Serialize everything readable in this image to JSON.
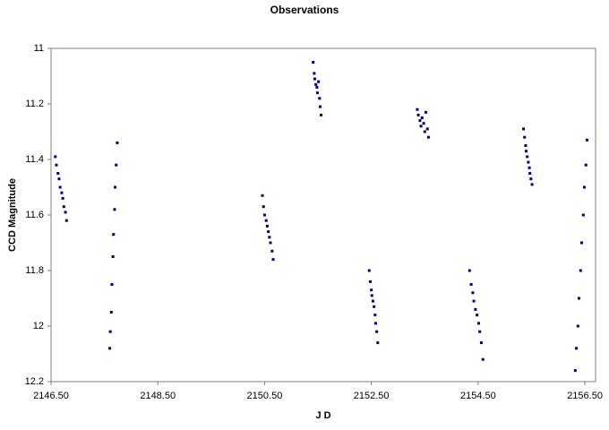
{
  "chart_data": {
    "type": "scatter",
    "title": "Observations",
    "x_label": "J D",
    "y_label": "CCD Magnitude",
    "color": "#000080",
    "y_inverted": true,
    "grid": false,
    "xlim": [
      2146.5,
      2156.7
    ],
    "ylim": [
      11,
      12.2
    ],
    "xticks": [
      {
        "value": 2146.5,
        "label": "2146.50"
      },
      {
        "value": 2148.5,
        "label": "2148.50"
      },
      {
        "value": 2150.5,
        "label": "2150.50"
      },
      {
        "value": 2152.5,
        "label": "2152.50"
      },
      {
        "value": 2154.5,
        "label": "2154.50"
      },
      {
        "value": 2156.5,
        "label": "2156.50"
      }
    ],
    "yticks": [
      11,
      11.2,
      11.4,
      11.6,
      11.8,
      12,
      12.2
    ],
    "x": [
      2146.58,
      2146.6,
      2146.63,
      2146.65,
      2146.67,
      2146.7,
      2146.72,
      2146.74,
      2146.77,
      2146.79,
      2147.6,
      2147.61,
      2147.63,
      2147.64,
      2147.66,
      2147.67,
      2147.69,
      2147.7,
      2147.72,
      2147.74,
      2150.46,
      2150.48,
      2150.5,
      2150.53,
      2150.55,
      2150.57,
      2150.59,
      2150.61,
      2150.64,
      2150.66,
      2151.41,
      2151.43,
      2151.44,
      2151.46,
      2151.48,
      2151.49,
      2151.51,
      2151.53,
      2151.54,
      2151.56,
      2152.46,
      2152.48,
      2152.5,
      2152.51,
      2152.53,
      2152.55,
      2152.57,
      2152.58,
      2152.6,
      2152.62,
      2153.36,
      2153.38,
      2153.41,
      2153.43,
      2153.45,
      2153.48,
      2153.5,
      2153.52,
      2153.55,
      2153.57,
      2154.34,
      2154.37,
      2154.4,
      2154.42,
      2154.45,
      2154.48,
      2154.51,
      2154.53,
      2154.56,
      2154.59,
      2155.35,
      2155.37,
      2155.39,
      2155.4,
      2155.42,
      2155.44,
      2155.46,
      2155.47,
      2155.49,
      2155.51,
      2156.32,
      2156.34,
      2156.37,
      2156.39,
      2156.42,
      2156.44,
      2156.47,
      2156.49,
      2156.52,
      2156.54
    ],
    "values": [
      11.39,
      11.42,
      11.45,
      11.47,
      11.5,
      11.52,
      11.54,
      11.57,
      11.59,
      11.62,
      12.08,
      12.02,
      11.95,
      11.85,
      11.75,
      11.67,
      11.58,
      11.5,
      11.42,
      11.34,
      11.53,
      11.57,
      11.6,
      11.62,
      11.64,
      11.66,
      11.68,
      11.7,
      11.73,
      11.76,
      11.05,
      11.09,
      11.11,
      11.13,
      11.14,
      11.16,
      11.12,
      11.18,
      11.21,
      11.24,
      11.8,
      11.84,
      11.87,
      11.89,
      11.91,
      11.93,
      11.96,
      11.99,
      12.02,
      12.06,
      11.22,
      11.24,
      11.26,
      11.28,
      11.25,
      11.27,
      11.3,
      11.23,
      11.29,
      11.32,
      11.8,
      11.85,
      11.88,
      11.91,
      11.94,
      11.96,
      11.99,
      12.02,
      12.06,
      12.12,
      11.29,
      11.32,
      11.35,
      11.37,
      11.39,
      11.41,
      11.43,
      11.45,
      11.47,
      11.49,
      12.16,
      12.08,
      12.0,
      11.9,
      11.8,
      11.7,
      11.6,
      11.5,
      11.42,
      11.33
    ]
  }
}
